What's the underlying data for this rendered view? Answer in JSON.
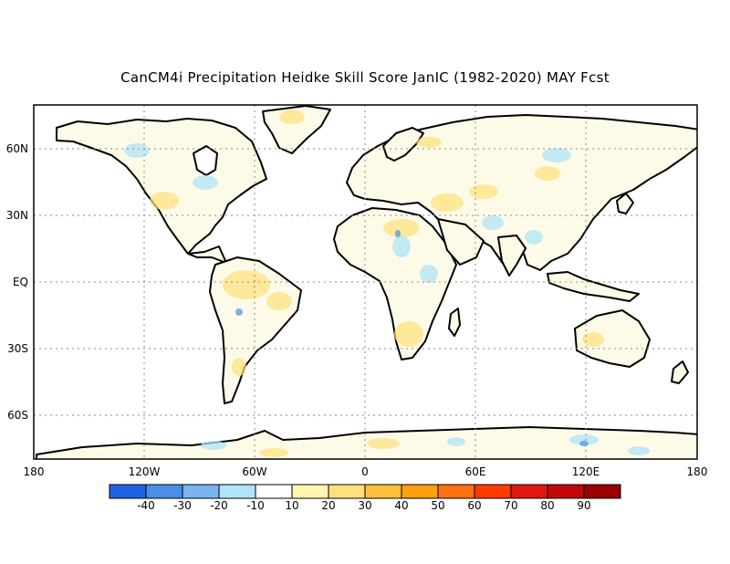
{
  "title": "CanCM4i Precipitation Heidke Skill Score JanIC (1982-2020) MAY Fcst",
  "lon_ticks": [
    "180",
    "120W",
    "60W",
    "0",
    "60E",
    "120E",
    "180"
  ],
  "lat_ticks": [
    "60N",
    "30N",
    "EQ",
    "30S",
    "60S"
  ],
  "legend": {
    "labels": [
      "-40",
      "-30",
      "-20",
      "-10",
      "10",
      "20",
      "30",
      "40",
      "50",
      "60",
      "70",
      "80",
      "90"
    ],
    "colors": [
      "#1e64e0",
      "#4a8ee8",
      "#7ab4f0",
      "#b0e4f8",
      "#ffffff",
      "#fff6b0",
      "#ffe07a",
      "#ffc040",
      "#ffa010",
      "#ff7010",
      "#ff3c00",
      "#e01810",
      "#c00808",
      "#9a0000"
    ]
  },
  "colors": {
    "land": "#fdfbe8",
    "ocean": "#ffffff",
    "coast": "#000000",
    "grid": "#8a8a8a"
  }
}
